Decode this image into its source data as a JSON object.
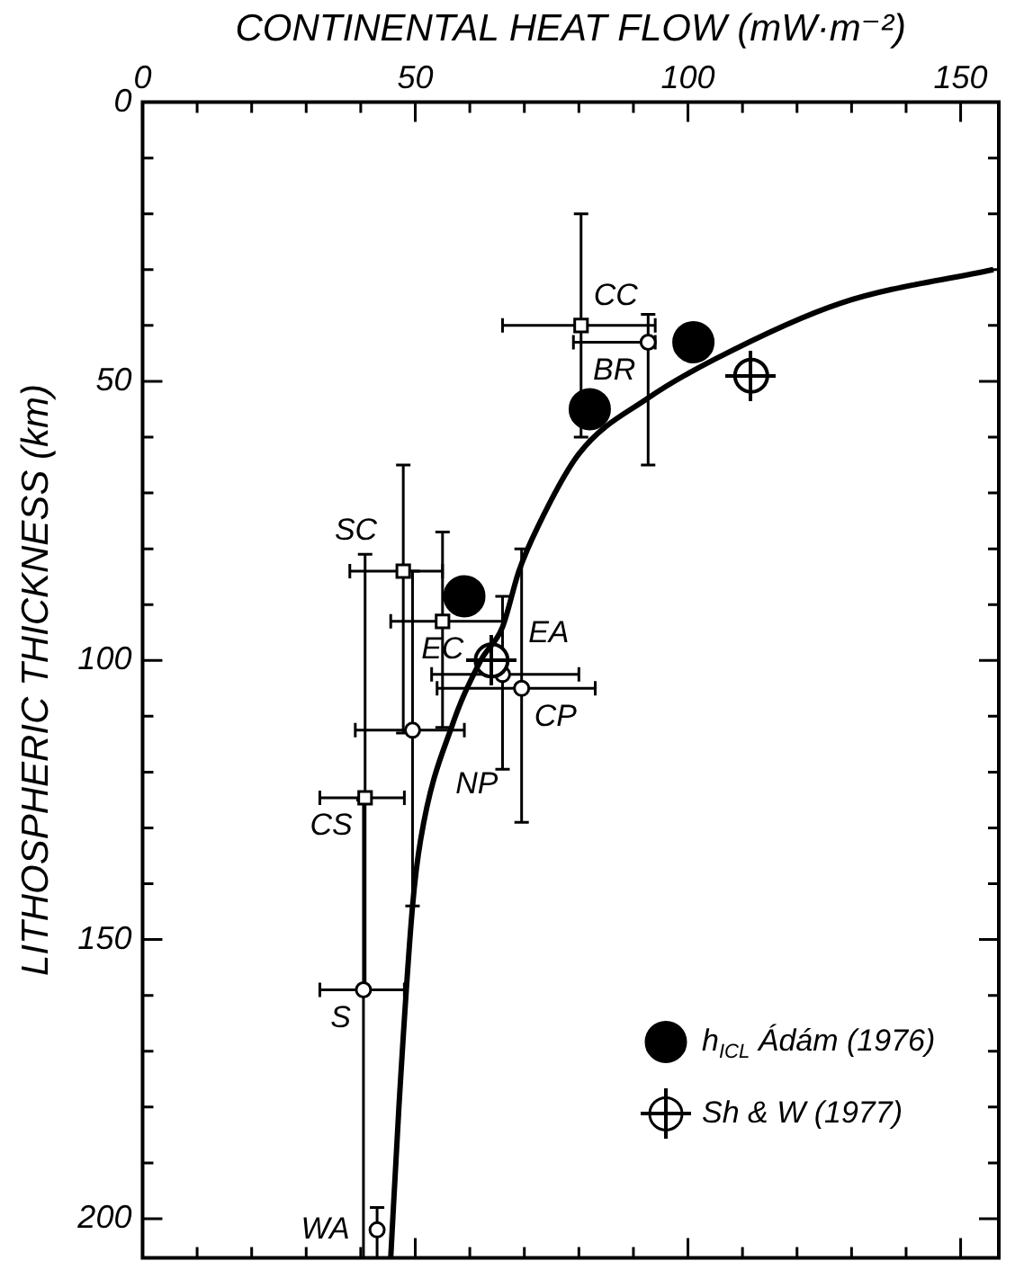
{
  "chart_data": {
    "type": "scatter",
    "xlabel": "CONTINENTAL HEAT FLOW (mW·m⁻²)",
    "ylabel": "LITHOSPHERIC THICKNESS (km)",
    "xlim": [
      0,
      157
    ],
    "ylim": [
      207,
      0
    ],
    "xticks": [
      0,
      {
        "value": 10,
        "label": null
      },
      {
        "value": 20,
        "label": null
      },
      {
        "value": 30,
        "label": null
      },
      {
        "value": 40,
        "label": null
      },
      50,
      {
        "value": 60,
        "label": null
      },
      {
        "value": 70,
        "label": null
      },
      {
        "value": 80,
        "label": null
      },
      {
        "value": 90,
        "label": null
      },
      100,
      {
        "value": 110,
        "label": null
      },
      {
        "value": 120,
        "label": null
      },
      {
        "value": 130,
        "label": null
      },
      {
        "value": 140,
        "label": null
      },
      150
    ],
    "yticks": [
      0,
      {
        "value": 10,
        "label": null
      },
      {
        "value": 20,
        "label": null
      },
      {
        "value": 30,
        "label": null
      },
      {
        "value": 40,
        "label": null
      },
      50,
      {
        "value": 60,
        "label": null
      },
      {
        "value": 70,
        "label": null
      },
      {
        "value": 80,
        "label": null
      },
      {
        "value": 90,
        "label": null
      },
      100,
      {
        "value": 110,
        "label": null
      },
      {
        "value": 120,
        "label": null
      },
      {
        "value": 130,
        "label": null
      },
      {
        "value": 140,
        "label": null
      },
      150,
      {
        "value": 160,
        "label": null
      },
      {
        "value": 170,
        "label": null
      },
      {
        "value": 180,
        "label": null
      },
      {
        "value": 190,
        "label": null
      },
      200
    ],
    "legend": "bottom right",
    "series": [
      {
        "type": "line",
        "color": "#000000",
        "marker": "none",
        "x": [
          45.5,
          47,
          49.5,
          51,
          57,
          62,
          66,
          69,
          72.5,
          80,
          92.7,
          105,
          128,
          156
        ],
        "values": [
          207,
          180,
          144,
          132,
          111,
          100,
          94,
          84,
          76,
          63,
          53,
          46,
          36,
          30
        ]
      },
      {
        "name": "h$_{ICL}$ Ádám (1976)",
        "color": "#000000",
        "marker": "circle",
        "x": [
          101,
          82,
          59
        ],
        "values": [
          43,
          55,
          88.5
        ]
      },
      {
        "name": "Sh & W (1977)",
        "color": "#ffffff",
        "marker": "circle",
        "x": [
          111.6,
          64
        ],
        "values": [
          49,
          100
        ]
      },
      {
        "color": "#ffffff",
        "marker": "square",
        "x": [
          80.4,
          47.8,
          55,
          40.8
        ],
        "values": [
          40,
          84,
          93,
          124.6
        ],
        "xerrors": [
          [
            66,
            94
          ],
          [
            38,
            55
          ],
          [
            45.5,
            66
          ],
          [
            32.5,
            48
          ]
        ],
        "errors": [
          [
            20,
            60
          ],
          [
            65,
            113
          ],
          [
            77,
            112
          ],
          [
            81,
            159
          ]
        ]
      },
      {
        "color": "#ffffff",
        "marker": "circle",
        "x": [
          92.7,
          49.5,
          66,
          69.5,
          40.5,
          43
        ],
        "values": [
          43,
          112.5,
          102.5,
          105,
          159,
          202
        ],
        "xerrors": [
          [
            79,
            94
          ],
          [
            39,
            59
          ],
          [
            53,
            80
          ],
          [
            54,
            83
          ],
          [
            32.5,
            48
          ],
          null
        ],
        "errors": [
          [
            38,
            65
          ],
          [
            84,
            144
          ],
          [
            88.5,
            119.5
          ],
          [
            80,
            129
          ],
          [
            125,
            207
          ],
          [
            198,
            207
          ]
        ]
      }
    ],
    "annotations": [
      {
        "text": "CC",
        "x": 80.4,
        "y": 40
      },
      {
        "text": "BR",
        "x": 92.7,
        "y": 43
      },
      {
        "text": "SC",
        "x": 47.8,
        "y": 84
      },
      {
        "text": "EC",
        "x": 55,
        "y": 93
      },
      {
        "text": "EA",
        "x": 66,
        "y": 102.5
      },
      {
        "text": "NP",
        "x": 49.5,
        "y": 112.5
      },
      {
        "text": "CP",
        "x": 69.5,
        "y": 105
      },
      {
        "text": "CS",
        "x": 40.8,
        "y": 124.6
      },
      {
        "text": "S",
        "x": 40.5,
        "y": 159
      },
      {
        "text": "WA",
        "x": 43,
        "y": 202
      }
    ]
  }
}
